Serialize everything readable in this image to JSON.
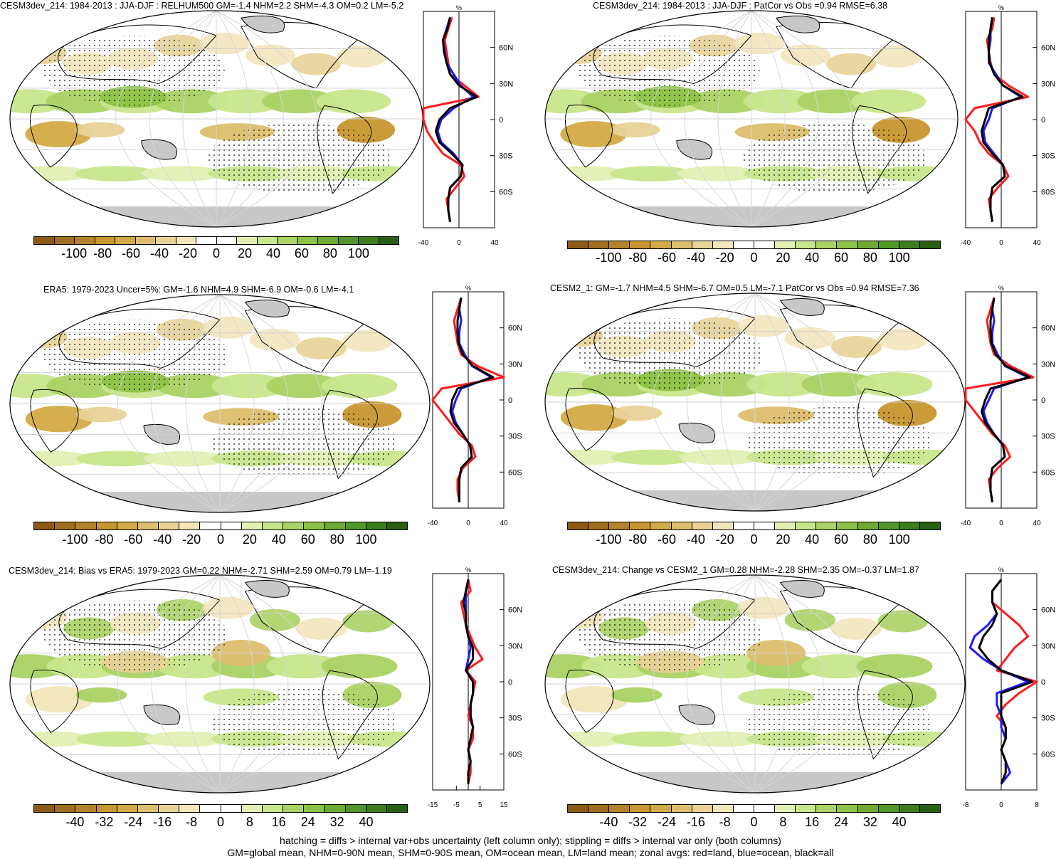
{
  "colors": {
    "land_gray": "#c8c8c8",
    "red_line": "#ff1a1a",
    "blue_line": "#1a1aff",
    "black_line": "#000000",
    "palette": [
      "#8c5a14",
      "#a06e1e",
      "#b4822a",
      "#c8962e",
      "#d2aa46",
      "#dcbe6e",
      "#e8d296",
      "#f2e6bc",
      "#ffffff",
      "#ffffff",
      "#e2f0b4",
      "#c8e68c",
      "#aad264",
      "#8cc346",
      "#6eaa32",
      "#509628",
      "#3c7d1e",
      "#285f14"
    ]
  },
  "panels": [
    {
      "id": "p1",
      "title": "CESM3dev_214: 1984-2013 : JJA-DJF : RELHUM500 GM=-1.4 NHM=2.2 SHM=-4.3 OM=0.2 LM=-5.2",
      "zonal_title": "%",
      "zonal_xticks": [
        "-40",
        "0",
        "40"
      ],
      "zonal_yticks": [
        "60N",
        "30N",
        "0",
        "30S",
        "60S"
      ],
      "cbar_labels": [
        "-100",
        "-80",
        "-60",
        "-40",
        "-20",
        "0",
        "20",
        "40",
        "60",
        "80",
        "100"
      ]
    },
    {
      "id": "p2",
      "title": "CESM3dev_214: 1984-2013 : JJA-DJF : PatCor vs Obs =0.94 RMSE=6.38",
      "zonal_title": "%",
      "zonal_xticks": [
        "-40",
        "0",
        "40"
      ],
      "zonal_yticks": [
        "60N",
        "30N",
        "0",
        "30S",
        "60S"
      ],
      "cbar_labels": [
        "-100",
        "-80",
        "-60",
        "-40",
        "-20",
        "0",
        "20",
        "40",
        "60",
        "80",
        "100"
      ]
    },
    {
      "id": "p3",
      "title": "ERA5: 1979-2023 Uncer=5%: GM=-1.6 NHM=4.9 SHM=-6.9 OM=-0.6 LM=-4.1",
      "zonal_title": "%",
      "zonal_xticks": [
        "-40",
        "0",
        "40"
      ],
      "zonal_yticks": [
        "60N",
        "30N",
        "0",
        "30S",
        "60S"
      ],
      "cbar_labels": [
        "-100",
        "-80",
        "-60",
        "-40",
        "-20",
        "0",
        "20",
        "40",
        "60",
        "80",
        "100"
      ]
    },
    {
      "id": "p4",
      "title": "CESM2_1: GM=-1.7 NHM=4.5 SHM=-6.7 OM=0.5 LM=-7.1 PatCor vs Obs =0.94 RMSE=7.36",
      "zonal_title": "%",
      "zonal_xticks": [
        "-40",
        "0",
        "40"
      ],
      "zonal_yticks": [
        "60N",
        "30N",
        "0",
        "30S",
        "60S"
      ],
      "cbar_labels": [
        "-100",
        "-80",
        "-60",
        "-40",
        "-20",
        "0",
        "20",
        "40",
        "60",
        "80",
        "100"
      ]
    },
    {
      "id": "p5",
      "title": "CESM3dev_214: Bias vs ERA5: 1979-2023 GM=0.22 NHM=-2.71 SHM=2.59 OM=0.79 LM=-1.19",
      "zonal_title": "%",
      "zonal_xticks": [
        "-15",
        "-5",
        "5",
        "15"
      ],
      "zonal_yticks": [
        "60N",
        "30N",
        "0",
        "30S",
        "60S"
      ],
      "cbar_labels": [
        "-40",
        "-32",
        "-24",
        "-16",
        "-8",
        "0",
        "8",
        "16",
        "24",
        "32",
        "40"
      ]
    },
    {
      "id": "p6",
      "title": "CESM3dev_214: Change vs CESM2_1 GM=0.28 NHM=-2.28 SHM=2.35 OM=-0.37 LM=1.87",
      "zonal_title": "%",
      "zonal_xticks": [
        "-8",
        "0",
        "8"
      ],
      "zonal_yticks": [
        "60N",
        "30N",
        "0",
        "30S",
        "60S"
      ],
      "cbar_labels": [
        "-40",
        "-32",
        "-24",
        "-16",
        "-8",
        "0",
        "8",
        "16",
        "24",
        "32",
        "40"
      ]
    }
  ],
  "chart_data": [
    {
      "type": "line",
      "panel": "p1",
      "xlim": [
        -40,
        40
      ],
      "ylabels": [
        "60N",
        "30N",
        "0",
        "30S",
        "60S"
      ],
      "series": [
        {
          "name": "land",
          "color": "#ff1a1a",
          "x": [
            -8,
            -12,
            -16,
            -14,
            -12,
            -10,
            6,
            22,
            -40,
            -60,
            -36,
            -28,
            -18,
            2,
            6,
            -4,
            -14,
            -12,
            -10
          ]
        },
        {
          "name": "ocean",
          "color": "#1a1aff",
          "x": [
            -10,
            -14,
            -18,
            -16,
            -14,
            -6,
            2,
            16,
            -6,
            -20,
            -24,
            -20,
            -6,
            4,
            2,
            -10,
            -12,
            -12,
            -10
          ]
        },
        {
          "name": "all",
          "color": "#000000",
          "x": [
            -10,
            -13,
            -18,
            -17,
            -14,
            -10,
            0,
            20,
            -10,
            -22,
            -26,
            -22,
            -8,
            4,
            2,
            -10,
            -12,
            -12,
            -10
          ]
        }
      ]
    },
    {
      "type": "line",
      "panel": "p2",
      "xlim": [
        -40,
        40
      ],
      "ylabels": [
        "60N",
        "30N",
        "0",
        "30S",
        "60S"
      ],
      "series": [
        {
          "name": "land",
          "color": "#ff1a1a",
          "x": [
            -8,
            -10,
            -16,
            -14,
            -12,
            -8,
            8,
            30,
            -30,
            -40,
            -30,
            -24,
            -14,
            2,
            8,
            -4,
            -14,
            -12,
            -10
          ]
        },
        {
          "name": "ocean",
          "color": "#1a1aff",
          "x": [
            -10,
            -12,
            -12,
            -14,
            -14,
            -6,
            2,
            22,
            -10,
            -14,
            -20,
            -18,
            -8,
            2,
            4,
            -10,
            -12,
            -12,
            -10
          ]
        },
        {
          "name": "all",
          "color": "#000000",
          "x": [
            -10,
            -12,
            -14,
            -14,
            -13,
            -8,
            2,
            24,
            -14,
            -18,
            -22,
            -20,
            -10,
            2,
            4,
            -10,
            -12,
            -12,
            -10
          ]
        }
      ]
    },
    {
      "type": "line",
      "panel": "p3",
      "xlim": [
        -40,
        40
      ],
      "ylabels": [
        "60N",
        "30N",
        "0",
        "30S",
        "60S"
      ],
      "series": [
        {
          "name": "land",
          "color": "#ff1a1a",
          "x": [
            -8,
            -12,
            -16,
            -14,
            -12,
            -8,
            10,
            40,
            -30,
            -40,
            -30,
            -20,
            -10,
            4,
            8,
            -6,
            -12,
            -12,
            -10
          ]
        },
        {
          "name": "ocean",
          "color": "#1a1aff",
          "x": [
            -8,
            -10,
            -8,
            -10,
            -10,
            -4,
            4,
            26,
            -8,
            -14,
            -18,
            -14,
            -6,
            2,
            4,
            -8,
            -10,
            -10,
            -10
          ]
        },
        {
          "name": "all",
          "color": "#000000",
          "x": [
            -8,
            -10,
            -12,
            -12,
            -11,
            -6,
            5,
            28,
            -12,
            -18,
            -20,
            -16,
            -6,
            2,
            4,
            -8,
            -10,
            -10,
            -10
          ]
        }
      ]
    },
    {
      "type": "line",
      "panel": "p4",
      "xlim": [
        -40,
        40
      ],
      "ylabels": [
        "60N",
        "30N",
        "0",
        "30S",
        "60S"
      ],
      "series": [
        {
          "name": "land",
          "color": "#ff1a1a",
          "x": [
            -8,
            -12,
            -16,
            -14,
            -12,
            -8,
            10,
            36,
            -40,
            -40,
            -30,
            -20,
            -10,
            4,
            10,
            -4,
            -14,
            -12,
            -10
          ]
        },
        {
          "name": "ocean",
          "color": "#1a1aff",
          "x": [
            -8,
            -10,
            -8,
            -10,
            -10,
            -4,
            4,
            30,
            -8,
            -14,
            -20,
            -16,
            -8,
            2,
            4,
            -10,
            -12,
            -12,
            -10
          ]
        },
        {
          "name": "all",
          "color": "#000000",
          "x": [
            -8,
            -10,
            -12,
            -12,
            -11,
            -6,
            5,
            32,
            -12,
            -18,
            -22,
            -18,
            -8,
            2,
            4,
            -10,
            -12,
            -12,
            -10
          ]
        }
      ]
    },
    {
      "type": "line",
      "panel": "p5",
      "xlim": [
        -15,
        15
      ],
      "ylabels": [
        "60N",
        "30N",
        "0",
        "30S",
        "60S"
      ],
      "series": [
        {
          "name": "land",
          "color": "#ff1a1a",
          "x": [
            0,
            1,
            -3,
            -2,
            -1,
            1,
            3,
            6,
            -1,
            3,
            2,
            1,
            0,
            2,
            2,
            0,
            1,
            1,
            0
          ]
        },
        {
          "name": "ocean",
          "color": "#1a1aff",
          "x": [
            0,
            -1,
            -1,
            -1,
            -1,
            0,
            1,
            0,
            -1,
            2,
            2,
            1,
            1,
            2,
            1,
            0,
            1,
            0,
            0
          ]
        },
        {
          "name": "all",
          "color": "#000000",
          "x": [
            0,
            -1,
            -2,
            -1,
            -1,
            0,
            2,
            2,
            -1,
            2,
            2,
            1,
            1,
            2,
            1,
            0,
            1,
            0,
            0
          ]
        }
      ]
    },
    {
      "type": "line",
      "panel": "p6",
      "xlim": [
        -8,
        8
      ],
      "ylabels": [
        "60N",
        "30N",
        "0",
        "30S",
        "60S"
      ],
      "series": [
        {
          "name": "land",
          "color": "#ff1a1a",
          "x": [
            0,
            -2,
            -2,
            1,
            4,
            6,
            3,
            1,
            -1,
            9,
            4,
            1,
            -1,
            1,
            1,
            0,
            1,
            1,
            0
          ]
        },
        {
          "name": "ocean",
          "color": "#1a1aff",
          "x": [
            0,
            -2,
            -2,
            -1,
            -3,
            -6,
            -7,
            -4,
            0,
            6,
            -1,
            -1,
            0,
            0,
            1,
            0,
            1,
            2,
            0
          ]
        },
        {
          "name": "all",
          "color": "#000000",
          "x": [
            0,
            -2,
            -2,
            -1,
            -2,
            -4,
            -5,
            -3,
            0,
            7,
            0,
            0,
            0,
            1,
            1,
            0,
            1,
            1,
            0
          ]
        }
      ]
    }
  ],
  "footer": {
    "line1": "hatching = diffs > internal var+obs uncertainty (left column only); stippling = diffs > internal var only (both columns)",
    "line2": "GM=global mean, NHM=0-90N mean, SHM=0-90S mean, OM=ocean mean, LM=land mean; zonal avgs: red=land, blue=ocean, black=all"
  }
}
